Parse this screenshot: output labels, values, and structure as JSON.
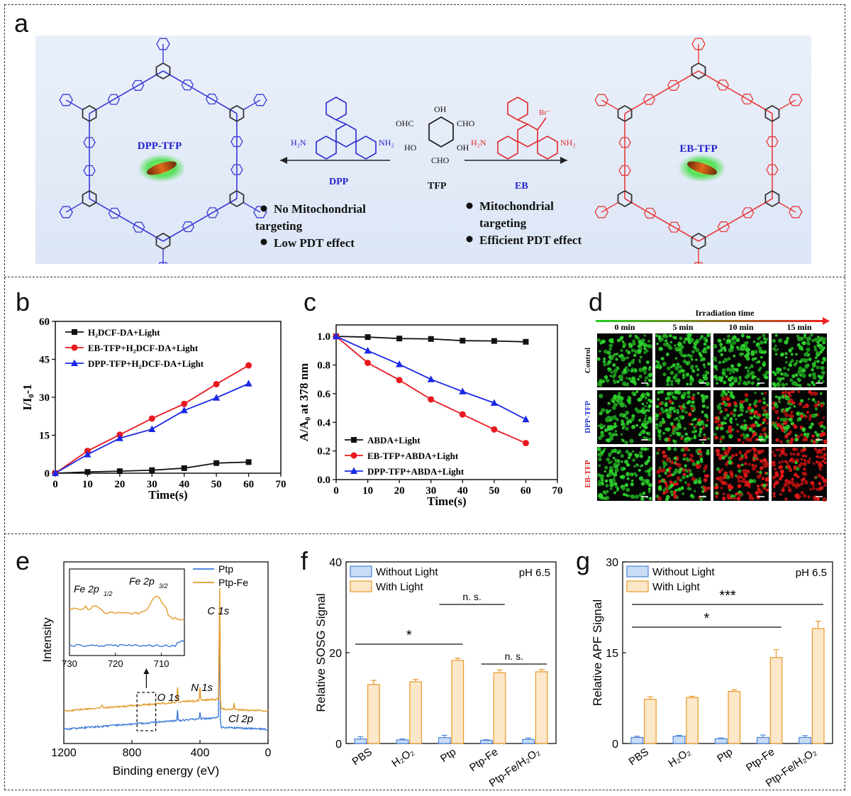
{
  "panel_labels": [
    "a",
    "b",
    "c",
    "d",
    "e",
    "f",
    "g"
  ],
  "scheme": {
    "left_cof": "DPP-TFP",
    "right_cof": "EB-TFP",
    "left_monomer": "DPP",
    "center_monomer": "TFP",
    "right_monomer": "EB",
    "left_bullets": [
      "No  Mitochondrial targeting",
      "Low PDT effect"
    ],
    "right_bullets": [
      "Mitochondrial targeting",
      "Efficient PDT effect"
    ],
    "groups": {
      "amine": "H₂N",
      "amine_r": "NH₂",
      "cho": "CHO",
      "ohc": "OHC",
      "oh": "OH",
      "ho": "HO",
      "br": "Br⁻"
    },
    "colors": {
      "dpp": "#3a3ad6",
      "eb": "#e83a3a",
      "tfp": "#222222"
    }
  },
  "chart_b": {
    "type": "line",
    "x": [
      0,
      10,
      20,
      30,
      40,
      50,
      60
    ],
    "series": [
      {
        "name": "H₂DCF-DA+Light",
        "values": [
          0,
          0.5,
          0.8,
          1.2,
          2.0,
          4.0,
          4.4
        ],
        "color": "#111111",
        "marker": "square"
      },
      {
        "name": "EB-TFP+H₂DCF-DA+Light",
        "values": [
          0,
          8.8,
          15.2,
          21.6,
          27.4,
          35.2,
          42.6
        ],
        "color": "#e8191f",
        "marker": "circle"
      },
      {
        "name": "DPP-TFP+H₂DCF-DA+Light",
        "values": [
          0,
          7.4,
          13.8,
          17.4,
          24.8,
          29.8,
          35.4
        ],
        "color": "#1a28e6",
        "marker": "triangle"
      }
    ],
    "xlabel": "Time(s)",
    "ylabel": "I/I₀-1",
    "xlim": [
      0,
      70
    ],
    "ylim": [
      0,
      60
    ],
    "xticks": [
      0,
      10,
      20,
      30,
      40,
      50,
      60,
      70
    ],
    "yticks": [
      0,
      15,
      30,
      45,
      60
    ],
    "legend": "top-left"
  },
  "chart_c": {
    "type": "line",
    "x": [
      0,
      10,
      20,
      30,
      40,
      50,
      60
    ],
    "series": [
      {
        "name": "ABDA+Light",
        "values": [
          1.0,
          0.995,
          0.985,
          0.982,
          0.97,
          0.968,
          0.962
        ],
        "color": "#111111",
        "marker": "square"
      },
      {
        "name": "EB-TFP+ABDA+Light",
        "values": [
          1.0,
          0.815,
          0.695,
          0.56,
          0.455,
          0.35,
          0.255
        ],
        "color": "#e8191f",
        "marker": "circle"
      },
      {
        "name": "DPP-TFP+ABDA+Light",
        "values": [
          1.0,
          0.9,
          0.805,
          0.7,
          0.615,
          0.535,
          0.42
        ],
        "color": "#1a28e6",
        "marker": "triangle"
      }
    ],
    "xlabel": "Time(s)",
    "ylabel": "A/A₀ at 378 nm",
    "xlim": [
      0,
      70
    ],
    "ylim": [
      0,
      1.08
    ],
    "xticks": [
      0,
      10,
      20,
      30,
      40,
      50,
      60,
      70
    ],
    "yticks": [
      0.0,
      0.2,
      0.4,
      0.6,
      0.8,
      1.0
    ],
    "legend": "bottom-left"
  },
  "panel_d": {
    "header": "Irradiation time",
    "columns": [
      "0 min",
      "5 min",
      "10 min",
      "15 min"
    ],
    "rows": [
      {
        "label": "Control",
        "color": "#111111",
        "red": [
          0.0,
          0.0,
          0.0,
          0.0
        ]
      },
      {
        "label": "DPP-TFP",
        "color": "#2233cc",
        "red": [
          0.0,
          0.12,
          0.35,
          0.5
        ]
      },
      {
        "label": "EB-TFP",
        "color": "#e02020",
        "red": [
          0.0,
          0.45,
          0.85,
          0.97
        ]
      }
    ]
  },
  "chart_e": {
    "type": "line",
    "xlabel": "Binding energy (eV)",
    "ylabel": "Intensity",
    "xlim": [
      1200,
      0
    ],
    "xticks": [
      1200,
      800,
      400,
      0
    ],
    "series": [
      {
        "name": "Ptp",
        "color": "#3a78d8"
      },
      {
        "name": "Ptp-Fe",
        "color": "#e39a2a"
      }
    ],
    "peaks": [
      "C 1s",
      "O 1s",
      "N 1s",
      "Cl 2p"
    ],
    "inset": {
      "xlim": [
        730,
        705
      ],
      "xticks": [
        730,
        720,
        710
      ],
      "labels": [
        "Fe 2p",
        "1/2",
        "Fe 2p",
        "3/2"
      ]
    },
    "legend": "top-right"
  },
  "chart_f": {
    "type": "bar",
    "categories": [
      "PBS",
      "H₂O₂",
      "Ptp",
      "Ptp-Fe",
      "Ptp-Fe/H₂O₂"
    ],
    "series": [
      {
        "name": "Without Light",
        "values": [
          1.0,
          0.8,
          1.3,
          0.7,
          0.9
        ],
        "errors": [
          0.5,
          0.2,
          0.5,
          0.15,
          0.3
        ],
        "color": "#c9dcf6",
        "edge": "#4a84d8"
      },
      {
        "name": "With Light",
        "values": [
          13.0,
          13.6,
          18.3,
          15.6,
          15.8
        ],
        "errors": [
          0.9,
          0.5,
          0.5,
          0.6,
          0.5
        ],
        "color": "#fce7c8",
        "edge": "#e89a2a"
      }
    ],
    "ylabel": "Relative SOSG Signal",
    "ylim": [
      0,
      40
    ],
    "yticks": [
      0,
      20,
      40
    ],
    "annotation": "pH 6.5",
    "significance": [
      {
        "from": 0,
        "to": 2,
        "label": "*"
      },
      {
        "from": 2,
        "to": 3,
        "label": "n. s."
      },
      {
        "from": 3,
        "to": 4,
        "label": "n. s."
      }
    ],
    "legend": "top-left"
  },
  "chart_g": {
    "type": "bar",
    "categories": [
      "PBS",
      "H₂O₂",
      "Ptp",
      "Ptp-Fe",
      "Ptp-Fe/H₂O₂"
    ],
    "series": [
      {
        "name": "Without Light",
        "values": [
          1.0,
          1.2,
          0.8,
          1.0,
          1.0
        ],
        "errors": [
          0.2,
          0.15,
          0.1,
          0.4,
          0.3
        ],
        "color": "#c9dcf6",
        "edge": "#4a84d8"
      },
      {
        "name": "With Light",
        "values": [
          7.3,
          7.6,
          8.6,
          14.2,
          19.0
        ],
        "errors": [
          0.4,
          0.2,
          0.3,
          1.3,
          1.2
        ],
        "color": "#fce7c8",
        "edge": "#e89a2a"
      }
    ],
    "ylabel": "Relative APF Signal",
    "ylim": [
      0,
      30
    ],
    "yticks": [
      0,
      15,
      30
    ],
    "annotation": "pH 6.5",
    "significance": [
      {
        "from": 0,
        "to": 3,
        "label": "*"
      },
      {
        "from": 0,
        "to": 4,
        "label": "***"
      }
    ],
    "legend": "top-left"
  }
}
